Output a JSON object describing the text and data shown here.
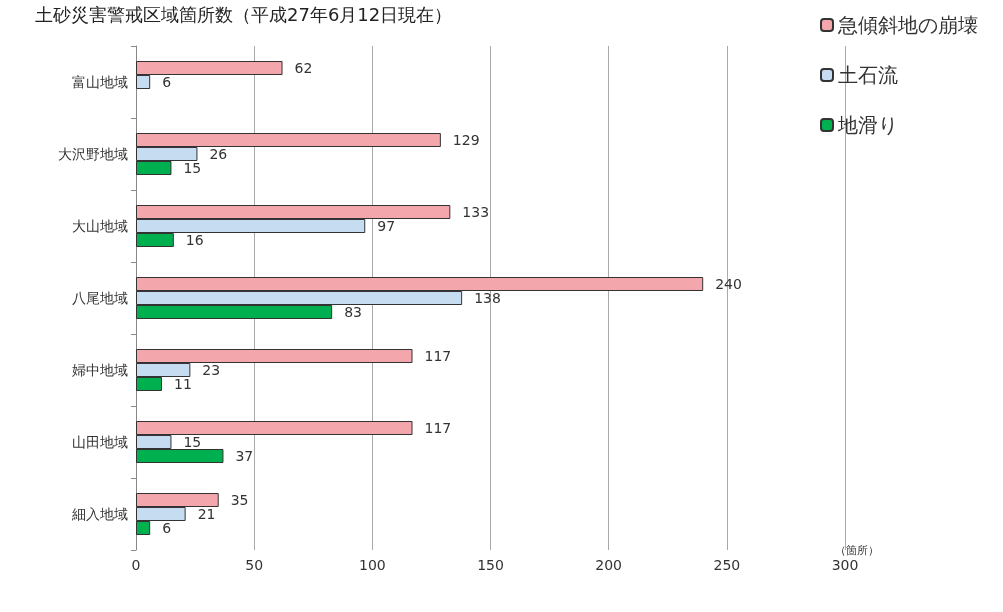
{
  "chart_data": {
    "type": "bar",
    "orientation": "horizontal",
    "title": "土砂災害警戒区域箇所数（平成27年6月12日現在）",
    "xlabel": "（箇所）",
    "categories": [
      "富山地域",
      "大沢野地域",
      "大山地域",
      "八尾地域",
      "婦中地域",
      "山田地域",
      "細入地域"
    ],
    "series": [
      {
        "name": "急傾斜地の崩壊",
        "color": "#f4a6ad",
        "values": [
          62,
          129,
          133,
          240,
          117,
          117,
          35
        ]
      },
      {
        "name": "土石流",
        "color": "#c6dcf0",
        "values": [
          6,
          26,
          97,
          138,
          23,
          15,
          21
        ]
      },
      {
        "name": "地滑り",
        "color": "#00b050",
        "values": [
          null,
          15,
          16,
          83,
          11,
          37,
          6
        ]
      }
    ],
    "xlim": [
      0,
      300
    ],
    "xticks": [
      0,
      50,
      100,
      150,
      200,
      250,
      300
    ],
    "grid": "x",
    "legend": "top right",
    "data_labels": true
  }
}
